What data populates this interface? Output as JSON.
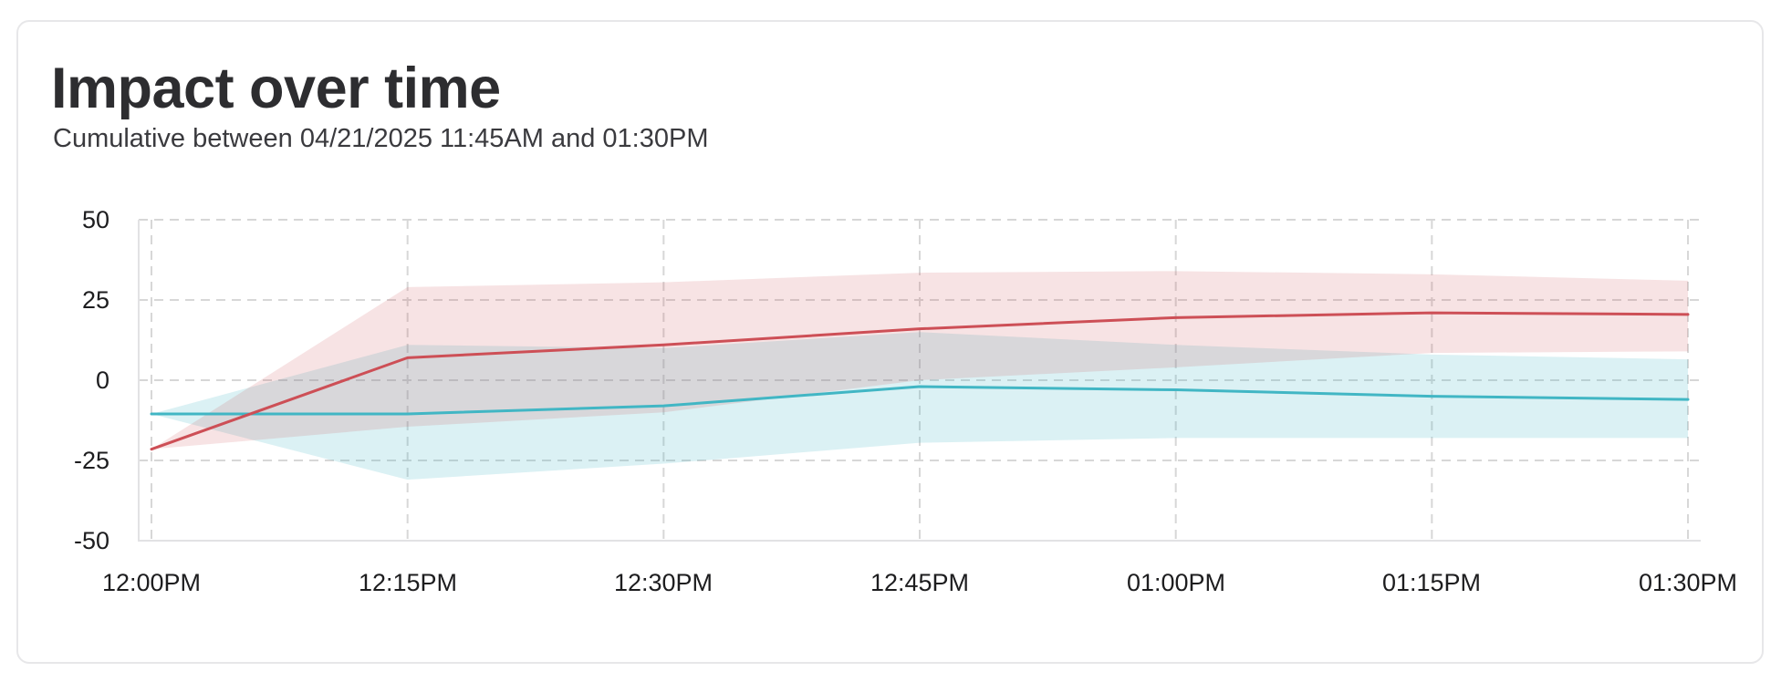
{
  "colors": {
    "background": "#ffffff",
    "card_border": "#e7e7e9",
    "title": "#2d2d30",
    "subtitle": "#3a3a3e",
    "tick": "#1d1d1f",
    "grid": "#d7d7d7",
    "axis": "#e2e2e4"
  },
  "chart_data": {
    "type": "line",
    "title": "Impact over time",
    "subtitle": "Cumulative between 04/21/2025 11:45AM and 01:30PM",
    "x_labels": [
      "12:00PM",
      "12:15PM",
      "12:30PM",
      "12:45PM",
      "01:00PM",
      "01:15PM",
      "01:30PM"
    ],
    "y_ticks": [
      "50",
      "25",
      "0",
      "-25",
      "-50"
    ],
    "ylim": [
      -50,
      50
    ],
    "grid": "dashed",
    "legend": "none",
    "series": [
      {
        "name": "teal",
        "line_color": "#41b6c4",
        "band_color": "rgba(65,182,196,0.19)",
        "values": [
          -10.5,
          -10.5,
          -8,
          -2,
          -3,
          -5,
          -6
        ],
        "band_upper": [
          -10.5,
          11,
          10,
          15,
          11,
          8,
          6.5
        ],
        "band_lower": [
          -10.5,
          -31,
          -26,
          -19.5,
          -18,
          -18,
          -18
        ]
      },
      {
        "name": "red",
        "line_color": "#cd4f56",
        "band_color": "rgba(205,79,86,0.16)",
        "values": [
          -21.5,
          7,
          11,
          16,
          19.5,
          21,
          20.5
        ],
        "band_upper": [
          -21.5,
          29,
          30.5,
          33.5,
          34,
          33,
          31
        ],
        "band_lower": [
          -21.5,
          -14.5,
          -10,
          0,
          4,
          8.5,
          9
        ]
      }
    ]
  }
}
